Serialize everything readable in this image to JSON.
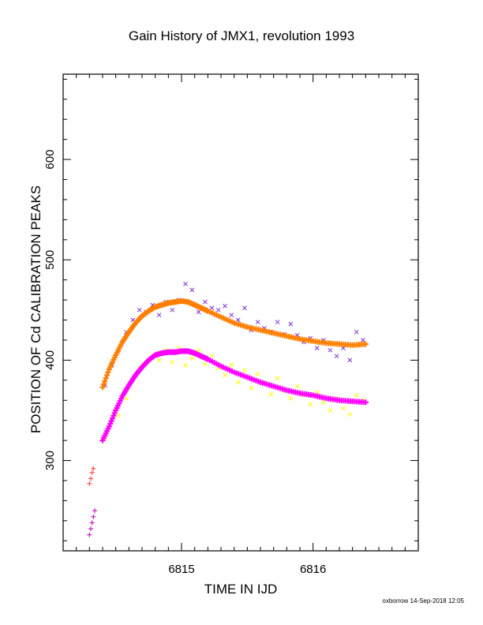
{
  "title": "Gain History of JMX1, revolution 1993",
  "footer": "oxborrow 14-Sep-2018 12:05",
  "chart_data": {
    "type": "scatter",
    "title": "Gain History of JMX1, revolution 1993",
    "xlabel": "TIME IN IJD",
    "ylabel": "POSITION OF Cd CALIBRATION PEAKS",
    "xlim": [
      6814.1,
      6816.8
    ],
    "ylim": [
      210,
      685
    ],
    "xticks": [
      6815,
      6816
    ],
    "yticks": [
      300,
      400,
      500,
      600
    ],
    "grid": false,
    "colors": {
      "upper_raw": "#7f2fd8",
      "upper_fit": "#ff7f00",
      "lower_raw": "#ffff00",
      "lower_fit": "#ff00ff",
      "early_raw": "#ff5050",
      "early_fit": "#c020c0"
    },
    "series": [
      {
        "role": "upper_fit",
        "marker": "plus",
        "color": "#ff7f00",
        "x": [
          6814.4,
          6814.45,
          6814.5,
          6814.55,
          6814.6,
          6814.65,
          6814.7,
          6814.75,
          6814.8,
          6814.85,
          6814.9,
          6814.95,
          6815.0,
          6815.05,
          6815.1,
          6815.15,
          6815.2,
          6815.3,
          6815.4,
          6815.5,
          6815.6,
          6815.7,
          6815.8,
          6815.9,
          6816.0,
          6816.1,
          6816.2,
          6816.3,
          6816.4
        ],
        "y": [
          373,
          391,
          405,
          418,
          428,
          437,
          444,
          449,
          453,
          455,
          457,
          458,
          459,
          458,
          455,
          452,
          449,
          443,
          437,
          433,
          430,
          427,
          424,
          421,
          419,
          417,
          416,
          415,
          416
        ]
      },
      {
        "role": "lower_fit",
        "marker": "plus",
        "color": "#ff00ff",
        "x": [
          6814.4,
          6814.45,
          6814.5,
          6814.55,
          6814.6,
          6814.65,
          6814.7,
          6814.75,
          6814.8,
          6814.85,
          6814.9,
          6814.95,
          6815.0,
          6815.05,
          6815.1,
          6815.15,
          6815.2,
          6815.3,
          6815.4,
          6815.5,
          6815.6,
          6815.7,
          6815.8,
          6815.9,
          6816.0,
          6816.1,
          6816.2,
          6816.3,
          6816.4
        ],
        "y": [
          320,
          334,
          350,
          364,
          375,
          385,
          393,
          400,
          405,
          407,
          408,
          408,
          409,
          409,
          407,
          404,
          401,
          394,
          388,
          383,
          378,
          374,
          370,
          367,
          365,
          362,
          360,
          359,
          358
        ]
      },
      {
        "role": "upper_raw",
        "marker": "cross",
        "color": "#7f2fd8",
        "x": [
          6814.42,
          6814.47,
          6814.52,
          6814.58,
          6814.63,
          6814.68,
          6814.73,
          6814.78,
          6814.83,
          6814.88,
          6814.93,
          6814.98,
          6815.03,
          6815.08,
          6815.13,
          6815.18,
          6815.23,
          6815.28,
          6815.33,
          6815.38,
          6815.43,
          6815.48,
          6815.53,
          6815.58,
          6815.63,
          6815.68,
          6815.73,
          6815.78,
          6815.83,
          6815.88,
          6815.93,
          6815.98,
          6816.03,
          6816.08,
          6816.13,
          6816.18,
          6816.23,
          6816.28,
          6816.33,
          6816.38
        ],
        "y": [
          375,
          395,
          410,
          428,
          440,
          450,
          448,
          455,
          445,
          458,
          450,
          460,
          476,
          470,
          448,
          458,
          452,
          450,
          454,
          445,
          440,
          452,
          430,
          438,
          432,
          428,
          438,
          426,
          436,
          425,
          418,
          422,
          412,
          420,
          410,
          404,
          412,
          400,
          428,
          420
        ]
      },
      {
        "role": "lower_raw",
        "marker": "cross",
        "color": "#ffff00",
        "x": [
          6814.42,
          6814.47,
          6814.52,
          6814.58,
          6814.63,
          6814.68,
          6814.73,
          6814.78,
          6814.83,
          6814.88,
          6814.93,
          6814.98,
          6815.03,
          6815.08,
          6815.13,
          6815.18,
          6815.23,
          6815.28,
          6815.33,
          6815.38,
          6815.43,
          6815.48,
          6815.53,
          6815.58,
          6815.63,
          6815.68,
          6815.73,
          6815.78,
          6815.83,
          6815.88,
          6815.93,
          6815.98,
          6816.03,
          6816.08,
          6816.13,
          6816.18,
          6816.23,
          6816.28,
          6816.33,
          6816.38
        ],
        "y": [
          322,
          338,
          345,
          362,
          380,
          392,
          398,
          405,
          400,
          410,
          398,
          412,
          395,
          402,
          410,
          396,
          404,
          392,
          385,
          395,
          378,
          390,
          372,
          386,
          378,
          366,
          382,
          370,
          362,
          374,
          365,
          356,
          368,
          358,
          350,
          362,
          352,
          346,
          365,
          360
        ]
      },
      {
        "role": "early_raw",
        "marker": "plus",
        "color": "#ff5050",
        "x": [
          6814.3,
          6814.31,
          6814.32,
          6814.33
        ],
        "y": [
          277,
          282,
          288,
          292
        ]
      },
      {
        "role": "early_fit",
        "marker": "plus",
        "color": "#c020c0",
        "x": [
          6814.3,
          6814.31,
          6814.32,
          6814.33,
          6814.34
        ],
        "y": [
          226,
          232,
          238,
          244,
          250
        ]
      }
    ]
  }
}
